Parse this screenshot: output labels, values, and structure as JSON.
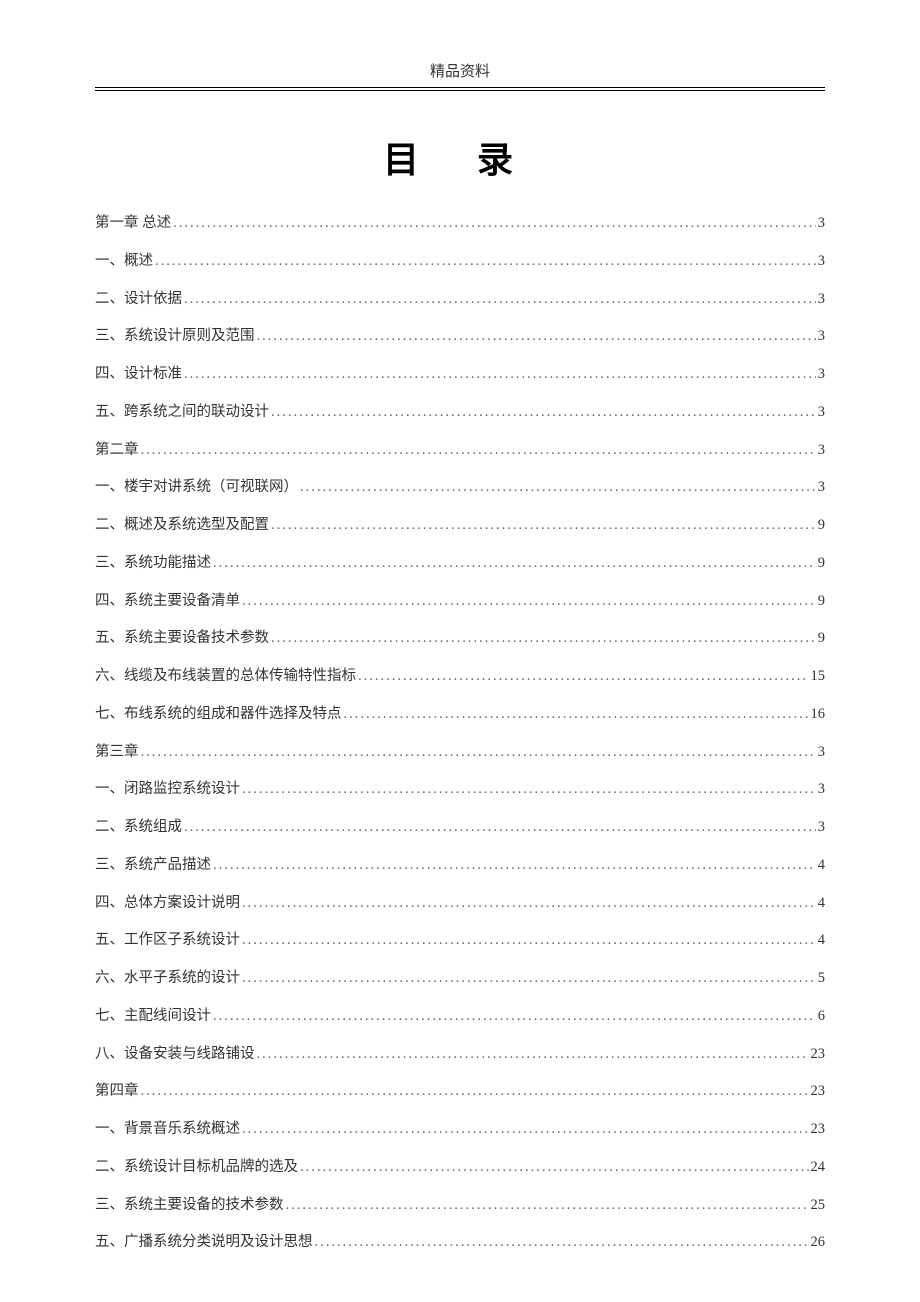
{
  "header": {
    "label": "精品资料"
  },
  "title": "目 录",
  "toc": {
    "entries": [
      {
        "label": "第一章  总述",
        "page": "3"
      },
      {
        "label": "一、概述",
        "page": "3"
      },
      {
        "label": "二、设计依据",
        "page": "3"
      },
      {
        "label": "三、系统设计原则及范围",
        "page": "3"
      },
      {
        "label": "四、设计标准",
        "page": "3"
      },
      {
        "label": "五、跨系统之间的联动设计",
        "page": "3"
      },
      {
        "label": "第二章",
        "page": "3"
      },
      {
        "label": "一、楼宇对讲系统（可视联网）",
        "page": "3"
      },
      {
        "label": "二、概述及系统选型及配置",
        "page": "9"
      },
      {
        "label": "三、系统功能描述",
        "page": "9"
      },
      {
        "label": "四、系统主要设备清单",
        "page": "9"
      },
      {
        "label": "五、系统主要设备技术参数",
        "page": "9"
      },
      {
        "label": "六、线缆及布线装置的总体传输特性指标",
        "page": "15"
      },
      {
        "label": "七、布线系统的组成和器件选择及特点",
        "page": "16"
      },
      {
        "label": "第三章",
        "page": "3"
      },
      {
        "label": "一、闭路监控系统设计",
        "page": "3"
      },
      {
        "label": "二、系统组成",
        "page": "3"
      },
      {
        "label": "三、系统产品描述",
        "page": "4"
      },
      {
        "label": "四、总体方案设计说明",
        "page": "4"
      },
      {
        "label": "五、工作区子系统设计",
        "page": "4"
      },
      {
        "label": "六、水平子系统的设计",
        "page": "5"
      },
      {
        "label": "七、主配线间设计",
        "page": "6"
      },
      {
        "label": "八、设备安装与线路铺设",
        "page": "23"
      },
      {
        "label": "第四章",
        "page": "23"
      },
      {
        "label": "一、背景音乐系统概述",
        "page": "23"
      },
      {
        "label": "二、系统设计目标机品牌的选及",
        "page": "24"
      },
      {
        "label": "三、系统主要设备的技术参数",
        "page": "25"
      },
      {
        "label": "五、广播系统分类说明及设计思想",
        "page": "26"
      }
    ]
  },
  "dots_fill": "...................................................................................................................................................................................................."
}
